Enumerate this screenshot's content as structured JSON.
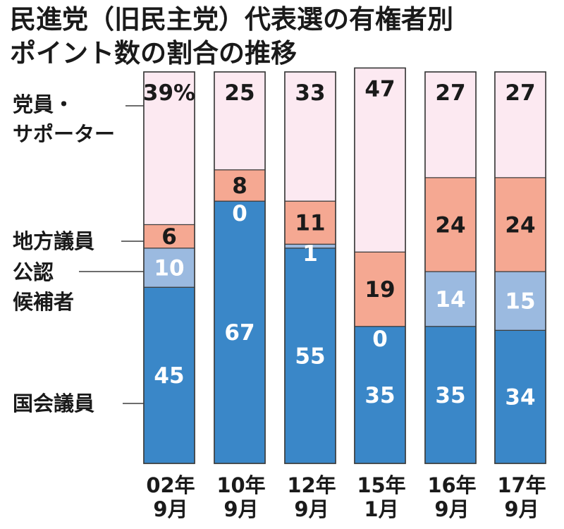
{
  "title": {
    "line1": "民進党（旧民主党）代表選の有権者別",
    "line2": "ポイント数の割合の推移"
  },
  "chart_data": {
    "type": "bar",
    "stacked": true,
    "categories": [
      [
        "02年",
        "9月"
      ],
      [
        "10年",
        "9月"
      ],
      [
        "12年",
        "9月"
      ],
      [
        "15年",
        "1月"
      ],
      [
        "16年",
        "9月"
      ],
      [
        "17年",
        "9月"
      ]
    ],
    "series": [
      {
        "name": "国会議員",
        "values": [
          45,
          67,
          55,
          35,
          35,
          34
        ],
        "color": "#3a87c8",
        "labels": [
          "45",
          "67",
          "55",
          "35",
          "35",
          "34"
        ]
      },
      {
        "name": "公認候補者",
        "display_name": [
          "公認",
          "候補者"
        ],
        "values": [
          10,
          0,
          1,
          0,
          14,
          15
        ],
        "color": "#9bbae0",
        "labels": [
          "10",
          "0",
          "1",
          "0",
          "14",
          "15"
        ]
      },
      {
        "name": "地方議員",
        "values": [
          6,
          8,
          11,
          19,
          24,
          24
        ],
        "color": "#f5a892",
        "labels": [
          "6",
          "8",
          "11",
          "19",
          "24",
          "24"
        ]
      },
      {
        "name": "党員・サポーター",
        "display_name": [
          "党員・",
          "サポーター"
        ],
        "values": [
          39,
          25,
          33,
          47,
          27,
          27
        ],
        "color": "#fce9f1",
        "labels": [
          "39%",
          "25",
          "33",
          "47",
          "27",
          "27"
        ]
      }
    ],
    "unit": "%",
    "ylim": [
      0,
      100
    ]
  }
}
